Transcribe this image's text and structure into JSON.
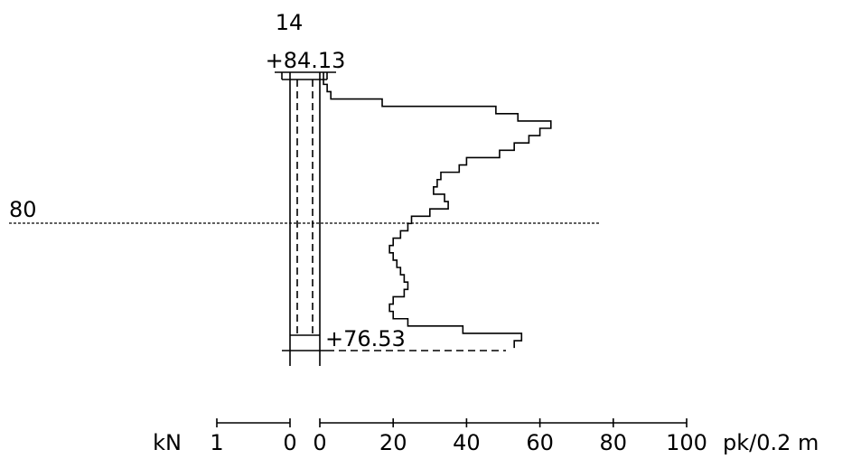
{
  "header": {
    "point_number": "14",
    "top_elevation": "+84.13",
    "bottom_elevation": "+76.53",
    "reference_level": "80"
  },
  "axis": {
    "kn_label": "kN",
    "kn_ticks": [
      "1",
      "0"
    ],
    "pk_ticks": [
      "0",
      "20",
      "40",
      "60",
      "80",
      "100"
    ],
    "pk_unit": "pk/0.2 m"
  },
  "chart_data": {
    "type": "line",
    "xlabel": "pk/0.2 m",
    "ylabel": "",
    "xlim": [
      0,
      100
    ],
    "ylim": [
      76.53,
      84.13
    ],
    "reference_line": 80,
    "profile": [
      [
        84.13,
        1
      ],
      [
        83.8,
        2
      ],
      [
        83.6,
        3
      ],
      [
        83.4,
        17
      ],
      [
        83.2,
        48
      ],
      [
        83.0,
        54
      ],
      [
        82.8,
        63
      ],
      [
        82.6,
        60
      ],
      [
        82.4,
        57
      ],
      [
        82.2,
        53
      ],
      [
        82.0,
        49
      ],
      [
        81.8,
        40
      ],
      [
        81.6,
        38
      ],
      [
        81.4,
        33
      ],
      [
        81.2,
        32
      ],
      [
        81.0,
        31
      ],
      [
        80.8,
        34
      ],
      [
        80.6,
        35
      ],
      [
        80.4,
        30
      ],
      [
        80.2,
        25
      ],
      [
        80.0,
        24
      ],
      [
        79.8,
        22
      ],
      [
        79.6,
        20
      ],
      [
        79.4,
        19
      ],
      [
        79.2,
        20
      ],
      [
        79.0,
        21
      ],
      [
        78.8,
        22
      ],
      [
        78.6,
        23
      ],
      [
        78.4,
        24
      ],
      [
        78.2,
        23
      ],
      [
        78.0,
        20
      ],
      [
        77.8,
        19
      ],
      [
        77.6,
        20
      ],
      [
        77.4,
        24
      ],
      [
        77.2,
        39
      ],
      [
        77.0,
        55
      ],
      [
        76.8,
        53
      ]
    ]
  }
}
